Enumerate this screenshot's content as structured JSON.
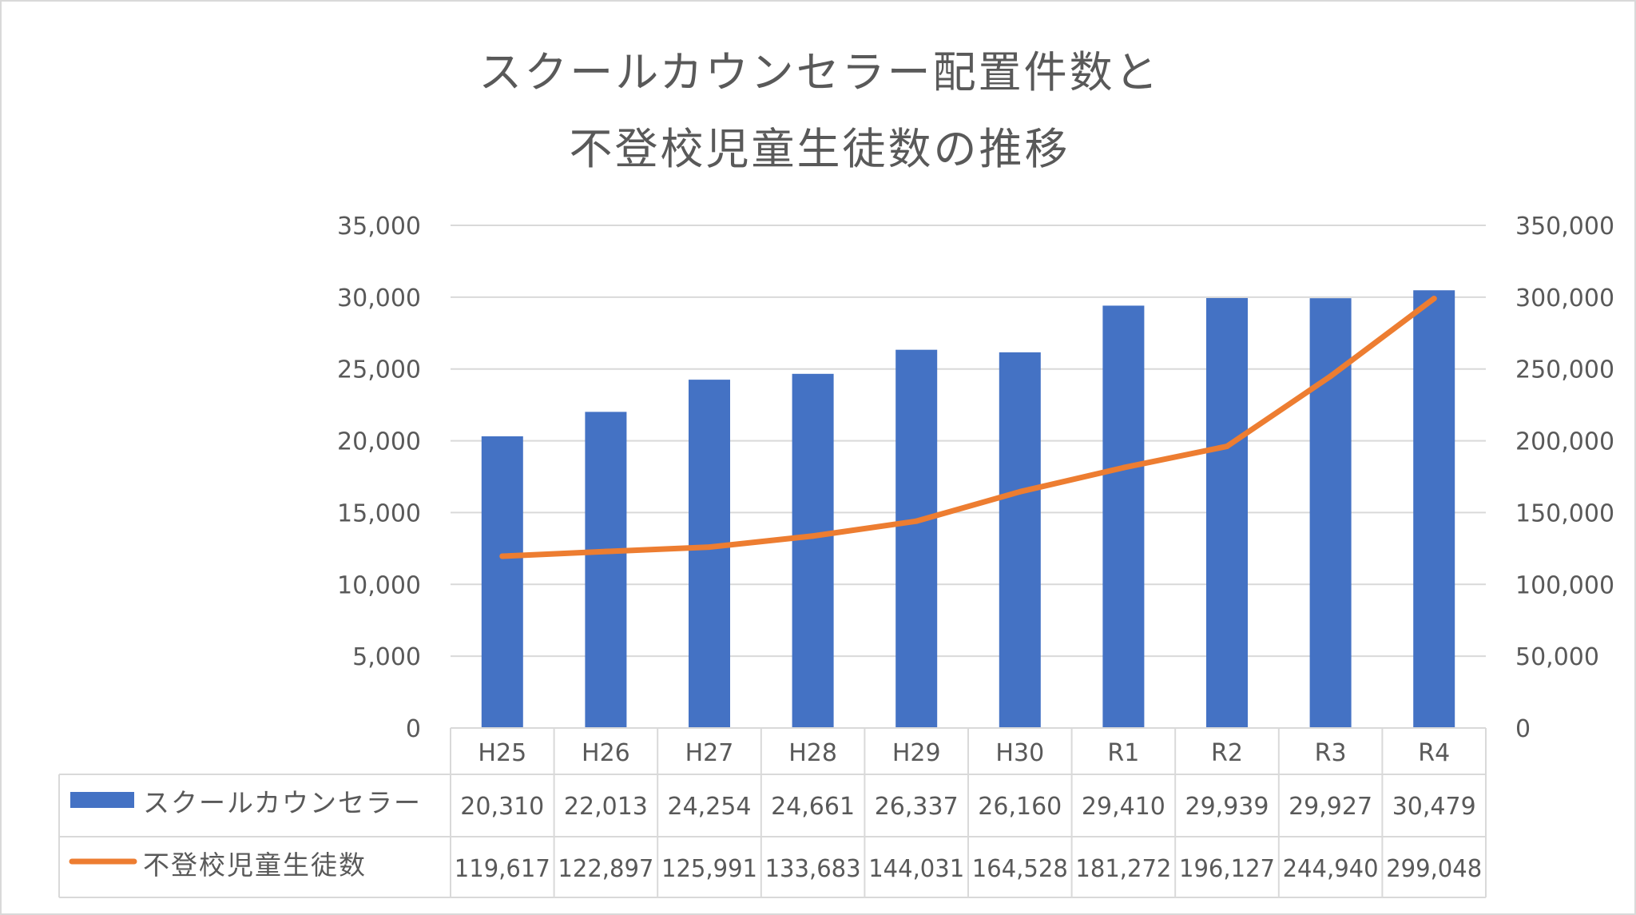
{
  "chart_data": {
    "type": "bar",
    "title_lines": [
      "スクールカウンセラー配置件数と",
      "不登校児童生徒数の推移"
    ],
    "categories": [
      "H25",
      "H26",
      "H27",
      "H28",
      "H29",
      "H30",
      "R1",
      "R2",
      "R3",
      "R4"
    ],
    "series": [
      {
        "name": "スクールカウンセラー",
        "type": "bar",
        "axis": "left",
        "color": "#4472c4",
        "values": [
          20310,
          22013,
          24254,
          24661,
          26337,
          26160,
          29410,
          29939,
          29927,
          30479
        ],
        "labels": [
          "20,310",
          "22,013",
          "24,254",
          "24,661",
          "26,337",
          "26,160",
          "29,410",
          "29,939",
          "29,927",
          "30,479"
        ]
      },
      {
        "name": "不登校児童生徒数",
        "type": "line",
        "axis": "right",
        "color": "#ed7d31",
        "values": [
          119617,
          122897,
          125991,
          133683,
          144031,
          164528,
          181272,
          196127,
          244940,
          299048
        ],
        "labels": [
          "119,617",
          "122,897",
          "125,991",
          "133,683",
          "144,031",
          "164,528",
          "181,272",
          "196,127",
          "244,940",
          "299,048"
        ]
      }
    ],
    "y_left": {
      "ylim": [
        0,
        35000
      ],
      "ticks": [
        0,
        5000,
        10000,
        15000,
        20000,
        25000,
        30000,
        35000
      ],
      "tick_labels": [
        "0",
        "5,000",
        "10,000",
        "15,000",
        "20,000",
        "25,000",
        "30,000",
        "35,000"
      ]
    },
    "y_right": {
      "ylim": [
        0,
        350000
      ],
      "ticks": [
        0,
        50000,
        100000,
        150000,
        200000,
        250000,
        300000,
        350000
      ],
      "tick_labels": [
        "0",
        "50,000",
        "100,000",
        "150,000",
        "200,000",
        "250,000",
        "300,000",
        "350,000"
      ]
    },
    "grid": true,
    "legend": "data-table",
    "data_table": true
  }
}
